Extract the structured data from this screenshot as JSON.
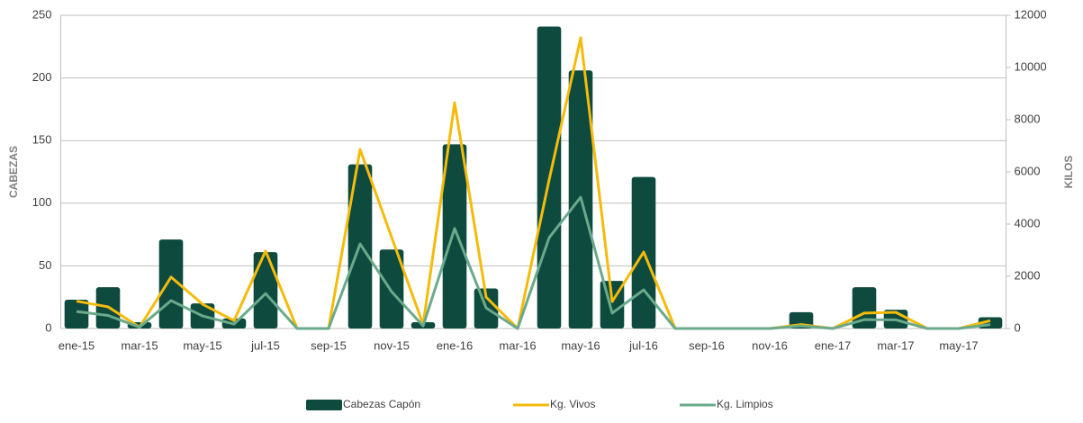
{
  "chart_data": {
    "type": "bar",
    "categories": [
      "ene-15",
      null,
      "mar-15",
      null,
      "may-15",
      null,
      "jul-15",
      null,
      "sep-15",
      null,
      "nov-15",
      null,
      "ene-16",
      null,
      "mar-16",
      null,
      "may-16",
      null,
      "jul-16",
      null,
      "sep-16",
      null,
      "nov-16",
      null,
      "ene-17",
      null,
      "mar-17",
      null,
      "may-17",
      null
    ],
    "y_label": "CABEZAS",
    "y2_label": "KILOS",
    "ylim": [
      0,
      250
    ],
    "yticks": [
      0,
      50,
      100,
      150,
      200,
      250
    ],
    "y2lim": [
      0,
      12000
    ],
    "y2ticks": [
      0,
      2000,
      4000,
      6000,
      8000,
      10000,
      12000
    ],
    "grid": true,
    "legend": "bottom",
    "series": [
      {
        "name": "Cabezas Capón",
        "type": "bar",
        "color": "#0e4a3e",
        "values": [
          23,
          33,
          5,
          71,
          20,
          8,
          61,
          0,
          0,
          131,
          63,
          5,
          147,
          32,
          0,
          241,
          206,
          38,
          121,
          0,
          0,
          0,
          0,
          13,
          0,
          33,
          15,
          0,
          0,
          9
        ]
      },
      {
        "name": "Kg. Vivos",
        "type": "line",
        "axis": "y2",
        "color": "#f5bb0b",
        "values": [
          1050,
          830,
          50,
          1970,
          930,
          300,
          2970,
          0,
          0,
          6860,
          3500,
          150,
          8650,
          1200,
          0,
          5700,
          11140,
          1030,
          2930,
          0,
          0,
          0,
          0,
          150,
          0,
          590,
          620,
          0,
          0,
          300
        ]
      },
      {
        "name": "Kg. Limpios",
        "type": "line",
        "axis": "y2",
        "color": "#6aaa8b",
        "values": [
          650,
          500,
          50,
          1070,
          480,
          170,
          1340,
          0,
          0,
          3240,
          1410,
          100,
          3830,
          790,
          0,
          3480,
          5030,
          590,
          1480,
          0,
          0,
          0,
          0,
          100,
          0,
          340,
          330,
          0,
          0,
          150
        ]
      }
    ]
  }
}
